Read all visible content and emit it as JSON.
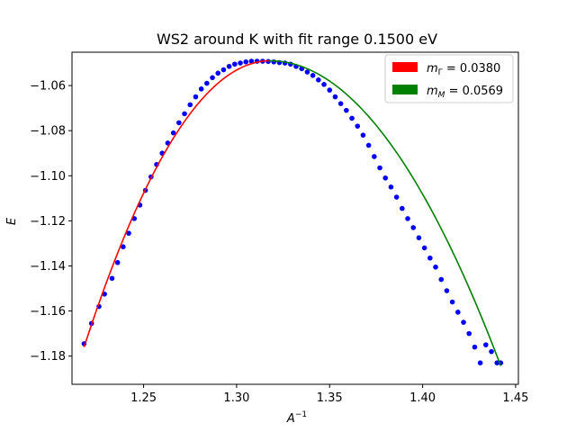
{
  "chart_data": {
    "type": "scatter",
    "title": "WS2 around K with fit range 0.1500 eV",
    "xlabel_base": "A",
    "xlabel_exp": "−1",
    "ylabel": "E",
    "xlim": [
      1.2115,
      1.4515
    ],
    "ylim": [
      -1.1925,
      -1.0452
    ],
    "xticks": [
      1.25,
      1.3,
      1.35,
      1.4,
      1.45
    ],
    "xtick_labels": [
      "1.25",
      "1.30",
      "1.35",
      "1.40",
      "1.45"
    ],
    "yticks": [
      -1.06,
      -1.08,
      -1.1,
      -1.12,
      -1.14,
      -1.16,
      -1.18
    ],
    "ytick_labels": [
      "−1.06",
      "−1.08",
      "−1.10",
      "−1.12",
      "−1.14",
      "−1.16",
      "−1.18"
    ],
    "legend_position": "top-right",
    "legend": [
      {
        "label_main": "m",
        "label_sub": "Γ",
        "label_rest": " = 0.0380",
        "color": "#ff0000"
      },
      {
        "label_main": "m",
        "label_sub": "M",
        "label_rest": " = 0.0569",
        "color": "#008000"
      }
    ],
    "scatter": {
      "color": "#0000ff",
      "x": [
        1.218,
        1.222,
        1.226,
        1.229,
        1.233,
        1.236,
        1.239,
        1.242,
        1.245,
        1.248,
        1.251,
        1.254,
        1.257,
        1.26,
        1.263,
        1.266,
        1.269,
        1.272,
        1.275,
        1.278,
        1.281,
        1.284,
        1.287,
        1.29,
        1.293,
        1.296,
        1.299,
        1.302,
        1.305,
        1.308,
        1.311,
        1.314,
        1.317,
        1.32,
        1.323,
        1.326,
        1.329,
        1.332,
        1.335,
        1.338,
        1.341,
        1.344,
        1.347,
        1.35,
        1.353,
        1.356,
        1.359,
        1.362,
        1.365,
        1.368,
        1.371,
        1.374,
        1.377,
        1.38,
        1.383,
        1.386,
        1.389,
        1.392,
        1.395,
        1.398,
        1.401,
        1.404,
        1.407,
        1.41,
        1.413,
        1.416,
        1.419,
        1.422,
        1.425,
        1.428,
        1.431,
        1.434,
        1.437,
        1.44,
        1.442
      ],
      "y": [
        -1.1745,
        -1.1655,
        -1.158,
        -1.1525,
        -1.1455,
        -1.1385,
        -1.1315,
        -1.1255,
        -1.119,
        -1.113,
        -1.1065,
        -1.1005,
        -1.095,
        -1.09,
        -1.0855,
        -1.081,
        -1.0765,
        -1.0725,
        -1.0685,
        -1.065,
        -1.0615,
        -1.059,
        -1.0565,
        -1.0545,
        -1.053,
        -1.0515,
        -1.0505,
        -1.05,
        -1.0495,
        -1.0492,
        -1.0492,
        -1.0492,
        -1.0493,
        -1.0495,
        -1.0498,
        -1.05,
        -1.0505,
        -1.0515,
        -1.0525,
        -1.054,
        -1.0555,
        -1.0575,
        -1.0595,
        -1.062,
        -1.065,
        -1.068,
        -1.071,
        -1.0745,
        -1.078,
        -1.082,
        -1.0865,
        -1.0915,
        -1.0965,
        -1.101,
        -1.105,
        -1.1095,
        -1.1145,
        -1.119,
        -1.123,
        -1.1275,
        -1.132,
        -1.1365,
        -1.1405,
        -1.146,
        -1.151,
        -1.156,
        -1.1605,
        -1.165,
        -1.17,
        -1.176,
        -1.183,
        -1.175,
        -1.178,
        -1.183,
        -1.183
      ]
    },
    "fit_gamma": {
      "color": "#ff0000",
      "x_range": [
        1.218,
        1.318
      ],
      "x0": 1.318,
      "y0": -1.049,
      "curvature": 12.7
    },
    "fit_M": {
      "color": "#008000",
      "x_range": [
        1.318,
        1.442
      ],
      "x0": 1.318,
      "y0": -1.049,
      "curvature": 8.8
    }
  }
}
